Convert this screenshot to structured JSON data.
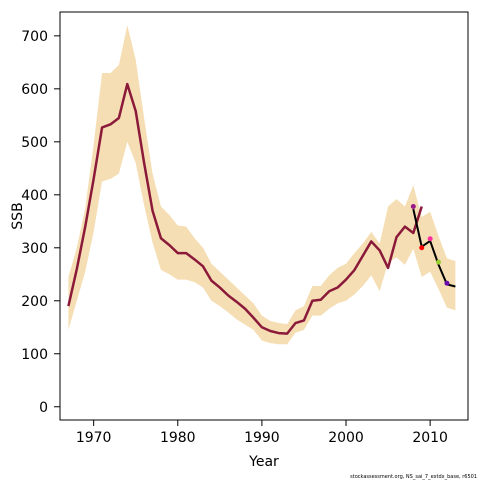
{
  "chart_data": {
    "type": "line",
    "title": "",
    "xlabel": "Year",
    "ylabel": "SSB",
    "xlim": [
      1966,
      2014.5
    ],
    "ylim": [
      -25,
      745
    ],
    "x_ticks": [
      1970,
      1980,
      1990,
      2000,
      2010
    ],
    "y_ticks": [
      0,
      100,
      200,
      300,
      400,
      500,
      600,
      700
    ],
    "grid": false,
    "legend": "none",
    "credit": "stockassessment.org, NS_sai_7_extdx_base, r6501",
    "colors": {
      "band": "#f5deb3",
      "main_line": "#8b1a3a",
      "retro_line": "#000000"
    },
    "band": {
      "x": [
        1967,
        1968,
        1969,
        1970,
        1971,
        1972,
        1973,
        1974,
        1975,
        1976,
        1977,
        1978,
        1979,
        1980,
        1981,
        1982,
        1983,
        1984,
        1985,
        1986,
        1987,
        1988,
        1989,
        1990,
        1991,
        1992,
        1993,
        1994,
        1995,
        1996,
        1997,
        1998,
        1999,
        2000,
        2001,
        2002,
        2003,
        2004,
        2005,
        2006,
        2007,
        2008,
        2009,
        2010,
        2011,
        2012,
        2013
      ],
      "lower": [
        145,
        200,
        255,
        330,
        425,
        430,
        440,
        500,
        460,
        380,
        310,
        258,
        250,
        240,
        240,
        235,
        225,
        200,
        190,
        178,
        165,
        155,
        145,
        125,
        120,
        118,
        118,
        140,
        145,
        172,
        172,
        185,
        195,
        200,
        212,
        228,
        248,
        218,
        272,
        282,
        268,
        298,
        245,
        255,
        222,
        187,
        182
      ],
      "upper": [
        245,
        300,
        375,
        495,
        630,
        630,
        645,
        720,
        655,
        545,
        440,
        378,
        362,
        342,
        340,
        318,
        300,
        270,
        255,
        240,
        225,
        210,
        195,
        172,
        162,
        158,
        156,
        182,
        190,
        228,
        228,
        248,
        262,
        270,
        290,
        308,
        330,
        308,
        378,
        392,
        378,
        418,
        358,
        368,
        322,
        280,
        275
      ]
    },
    "series": [
      {
        "x": [
          1967,
          1968,
          1969,
          1970,
          1971,
          1972,
          1973,
          1974,
          1975,
          1976,
          1977,
          1978,
          1979,
          1980,
          1981,
          1982,
          1983,
          1984,
          1985,
          1986,
          1987,
          1988,
          1989,
          1990,
          1991,
          1992,
          1993,
          1994,
          1995,
          1996,
          1997,
          1998,
          1999,
          2000,
          2001,
          2002,
          2003,
          2004,
          2005,
          2006,
          2007,
          2008,
          2009
        ],
        "values": [
          190,
          260,
          340,
          430,
          527,
          533,
          545,
          609,
          558,
          460,
          370,
          318,
          305,
          290,
          290,
          278,
          265,
          238,
          225,
          210,
          198,
          185,
          168,
          150,
          143,
          139,
          138,
          158,
          163,
          200,
          202,
          218,
          225,
          240,
          258,
          285,
          312,
          295,
          262,
          320,
          340,
          328,
          378
        ],
        "color": "#8b1a3a"
      },
      {
        "x": [
          2008,
          2009,
          2010,
          2011,
          2012,
          2013
        ],
        "values": [
          373,
          302,
          313,
          268,
          231,
          227
        ],
        "color": "#000000"
      }
    ],
    "points": [
      {
        "x": 2008,
        "y": 378,
        "color": "#9b1b8a"
      },
      {
        "x": 2009,
        "y": 300,
        "color": "#ff0000"
      },
      {
        "x": 2010,
        "y": 317,
        "color": "#ff2da0"
      },
      {
        "x": 2011,
        "y": 273,
        "color": "#9acd32"
      },
      {
        "x": 2012,
        "y": 233,
        "color": "#6a0dad"
      }
    ]
  }
}
